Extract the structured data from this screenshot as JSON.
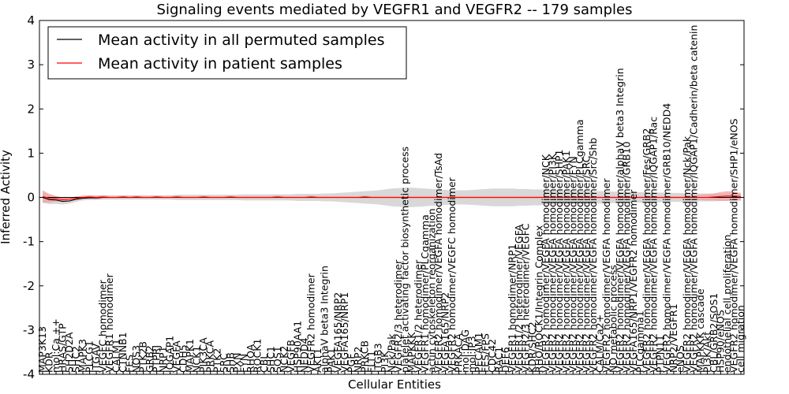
{
  "chart_data": {
    "type": "line",
    "title": "Signaling events mediated by VEGFR1 and VEGFR2 -- 179 samples",
    "xlabel": "Cellular Entities",
    "ylabel": "Inferred Activity",
    "ylim": [
      -4,
      4
    ],
    "yticks": [
      -4,
      -3,
      -2,
      -1,
      0,
      1,
      2,
      3,
      4
    ],
    "legend": {
      "location": "top-left",
      "entries": [
        {
          "label": "Mean activity in all permuted samples",
          "color": "#000000"
        },
        {
          "label": "Mean activity in patient samples",
          "color": "#ff0000"
        }
      ]
    },
    "categories": [
      "MAP3K13",
      "KDR",
      "mol:Ca ++",
      "HRAS/GTP",
      "SH2D2A",
      "SHC2",
      "MAPK3",
      "PLCG1",
      "ITGAV",
      "VEGFC homodimer",
      "VEGFR1 homodimer",
      "CALM1",
      "CTNNB1",
      "FES",
      "NOS3",
      "PTK2B",
      "GRB2",
      "PTPRJ",
      "NRP1",
      "IQGAP1",
      "VEGFA",
      "CDH5",
      "MAPK1",
      "NCK1",
      "PIK3CA",
      "PRKCA",
      "PTK2",
      "SRC",
      "SHB",
      "PXN",
      "FYN",
      "RHOA",
      "ROCK1",
      "CBL",
      "SHC1",
      "SOS1",
      "NCK2",
      "VEGFB",
      "HSP90AA1",
      "NEDD4",
      "VEGFR2 homodimer",
      "AKT1",
      "alphaV beta3 Integrin",
      "PAK1",
      "VEGFA165/NRP2",
      "VEGFA165/NRP1",
      "PGF",
      "NRP2",
      "PRKCB",
      "FLT1",
      "ITGB3",
      "PI3K",
      "Nck/Pak",
      "VEGFR2/3 heterodimer",
      "platelet activating factor biosynthetic process",
      "MAPKKK",
      "VEGFR1/2 heterodimer",
      "VEGFR1 homodimer/PLCgamma",
      "actin cytoskeleton reorganization",
      "VEGFR2 homodimer/VEGFA homodimer/TsAd",
      "VEGFA165/NRP2",
      "VEGFR2 homodimer/VEGFC homodimer",
      "PRKACA",
      "mol:DAG",
      "mol:IP3",
      "PECAM1",
      "FES/FPS",
      "CDC42",
      "RAC1",
      "DEF6",
      "VEGFR1 homodimer/NRP1",
      "VEGFR1/2 heterodimer/VEGFA",
      "VEGFR2/3 heterodimer/VEGFC",
      "KDR/SHC2",
      "RHO/ROCK1/Integrin Complex",
      "VEGFR2 homodimer/VEGFA homodimer/NCK",
      "VEGFR2 homodimer/VEGFA homodimer/PI3K",
      "VEGFR2 homodimer/VEGFA homodimer/SHP1",
      "VEGFR2 homodimer/VEGFA homodimer/PAK1",
      "VEGFR2 homodimer/VEGFA homodimer/FYN",
      "VEGFR2 homodimer/VEGFA homodimer/PLCgamma",
      "VEGFR2 homodimer/VEGFA homodimer/SRC",
      "VEGFR2 homodimer/VEGFA homodimer/Src/Shb",
      "CALM/Ca2+",
      "VEGFR2 homodimer/VEGFA homodimer",
      "NO metabolic process",
      "VEGFR2 homodimer/VEGFA homodimer/alphaV beta3 Integrin",
      "VEGFR2 homodimer/VEGFA homodimer/GRB10",
      "VEGFA165/NRP1/VEGFR2 homodimer",
      "PLCgamma1",
      "VEGFR2 homodimer/VEGFA homodimer/Fes/GRB2",
      "VEGFR2 homodimer/VEGFA homodimer/IQGAP1/Rac",
      "PTPN11",
      "VEGFR2 homodimer/VEGFA homodimer/GRB10/NEDD4",
      "NRP2/VEGFR1",
      "eNOS",
      "VEGFR2 homodimer/VEGFA homodimer/Nck/Pak",
      "VEGFR2 homodimer/VEGFA homodimer/IQGAP1/Cadherin/beta catenin",
      "MAPKKK cascade",
      "PI3K/Akt",
      "CBL/GRB2/SOS1",
      "HSP90/eNOS",
      "endothelial cell proliferation",
      "VEGFR2 homodimer/VEGFA homodimer/SHP1/eNOS",
      "cell migration"
    ],
    "series": [
      {
        "name": "Mean activity in all permuted samples",
        "values": [
          0.0,
          -0.05,
          -0.06,
          -0.09,
          -0.08,
          -0.04,
          -0.02,
          -0.01,
          -0.01,
          0.0,
          0.0,
          0.0,
          0.0,
          0.0,
          0.0,
          0.0,
          0.0,
          0.0,
          0.0,
          0.0,
          0.0,
          0.0,
          0.0,
          0.0,
          0.0,
          0.0,
          0.0,
          0.0,
          0.0,
          0.0,
          0.0,
          0.0,
          0.0,
          0.0,
          0.0,
          0.0,
          0.0,
          0.0,
          0.0,
          0.0,
          0.0,
          0.0,
          0.0,
          0.0,
          0.0,
          0.0,
          0.0,
          0.0,
          0.0,
          0.0,
          0.0,
          0.0,
          0.0,
          0.0,
          0.0,
          0.0,
          0.0,
          0.0,
          0.0,
          0.0,
          0.0,
          0.0,
          0.0,
          0.0,
          0.0,
          0.0,
          0.0,
          0.0,
          0.0,
          0.0,
          0.0,
          0.0,
          0.0,
          0.0,
          0.0,
          0.0,
          0.0,
          0.0,
          0.0,
          0.0,
          0.0,
          0.0,
          0.0,
          0.0,
          0.0,
          0.0,
          0.0,
          0.0,
          0.0,
          0.0,
          0.0,
          0.0,
          0.0,
          0.0,
          0.0,
          0.0,
          0.0,
          0.0,
          0.0,
          0.0,
          0.0,
          0.0,
          0.0,
          0.0,
          0.0
        ]
      },
      {
        "name": "Mean activity in patient samples",
        "values": [
          0.02,
          -0.02,
          -0.03,
          -0.05,
          -0.04,
          -0.02,
          0.0,
          0.01,
          0.0,
          0.01,
          0.0,
          0.0,
          0.01,
          0.0,
          0.01,
          0.0,
          0.0,
          0.01,
          0.0,
          0.0,
          0.01,
          0.0,
          0.0,
          0.0,
          0.01,
          0.0,
          0.0,
          0.0,
          0.01,
          0.0,
          0.0,
          0.0,
          0.0,
          0.0,
          0.0,
          0.01,
          0.0,
          0.0,
          0.0,
          0.0,
          0.01,
          0.0,
          0.0,
          0.0,
          0.0,
          0.0,
          0.0,
          0.0,
          0.01,
          0.0,
          0.0,
          0.0,
          0.0,
          0.0,
          0.0,
          0.0,
          0.0,
          0.0,
          0.0,
          0.0,
          0.0,
          0.0,
          0.0,
          0.0,
          0.0,
          0.0,
          0.0,
          0.0,
          0.0,
          0.0,
          0.0,
          0.0,
          0.0,
          0.0,
          0.0,
          0.0,
          0.0,
          0.0,
          0.0,
          0.0,
          0.0,
          0.0,
          0.0,
          0.0,
          0.0,
          0.0,
          0.0,
          0.0,
          0.0,
          0.0,
          0.0,
          0.0,
          0.0,
          0.0,
          0.0,
          0.0,
          0.0,
          0.0,
          0.0,
          0.0,
          0.01,
          0.02,
          0.03,
          0.03,
          0.02
        ]
      }
    ],
    "permuted_band": [
      0.12,
      0.1,
      0.09,
      0.07,
      0.06,
      0.06,
      0.05,
      0.05,
      0.05,
      0.05,
      0.05,
      0.05,
      0.05,
      0.05,
      0.05,
      0.05,
      0.05,
      0.05,
      0.05,
      0.05,
      0.06,
      0.06,
      0.06,
      0.06,
      0.06,
      0.06,
      0.06,
      0.06,
      0.06,
      0.06,
      0.07,
      0.07,
      0.07,
      0.07,
      0.07,
      0.07,
      0.07,
      0.07,
      0.08,
      0.08,
      0.08,
      0.08,
      0.09,
      0.09,
      0.1,
      0.11,
      0.12,
      0.13,
      0.14,
      0.15,
      0.16,
      0.18,
      0.2,
      0.21,
      0.22,
      0.22,
      0.21,
      0.2,
      0.19,
      0.18,
      0.17,
      0.16,
      0.16,
      0.16,
      0.17,
      0.18,
      0.19,
      0.2,
      0.2,
      0.2,
      0.2,
      0.19,
      0.19,
      0.18,
      0.18,
      0.17,
      0.17,
      0.16,
      0.16,
      0.15,
      0.15,
      0.15,
      0.14,
      0.14,
      0.14,
      0.13,
      0.13,
      0.13,
      0.12,
      0.12,
      0.12,
      0.11,
      0.11,
      0.11,
      0.1,
      0.1,
      0.1,
      0.09,
      0.09,
      0.09,
      0.09,
      0.08,
      0.08,
      0.08,
      0.08
    ],
    "patient_band": [
      0.14,
      0.1,
      0.06,
      0.05,
      0.04,
      0.04,
      0.04,
      0.04,
      0.04,
      0.04,
      0.03,
      0.03,
      0.03,
      0.03,
      0.03,
      0.03,
      0.03,
      0.03,
      0.03,
      0.03,
      0.03,
      0.03,
      0.03,
      0.03,
      0.03,
      0.03,
      0.03,
      0.03,
      0.03,
      0.03,
      0.03,
      0.03,
      0.03,
      0.03,
      0.03,
      0.03,
      0.03,
      0.03,
      0.03,
      0.03,
      0.03,
      0.03,
      0.03,
      0.03,
      0.03,
      0.03,
      0.03,
      0.03,
      0.03,
      0.03,
      0.03,
      0.03,
      0.03,
      0.03,
      0.03,
      0.03,
      0.03,
      0.03,
      0.03,
      0.03,
      0.03,
      0.03,
      0.03,
      0.03,
      0.03,
      0.03,
      0.03,
      0.03,
      0.03,
      0.03,
      0.03,
      0.03,
      0.03,
      0.03,
      0.03,
      0.03,
      0.03,
      0.03,
      0.03,
      0.03,
      0.03,
      0.03,
      0.03,
      0.03,
      0.03,
      0.03,
      0.03,
      0.03,
      0.03,
      0.03,
      0.03,
      0.03,
      0.03,
      0.03,
      0.03,
      0.03,
      0.04,
      0.05,
      0.06,
      0.07,
      0.08,
      0.1,
      0.11,
      0.1,
      0.08
    ]
  },
  "colors": {
    "permuted_line": "#000000",
    "patient_line": "#ff0000",
    "permuted_band": "#c8c8c8",
    "patient_band": "#f2a0a0"
  }
}
